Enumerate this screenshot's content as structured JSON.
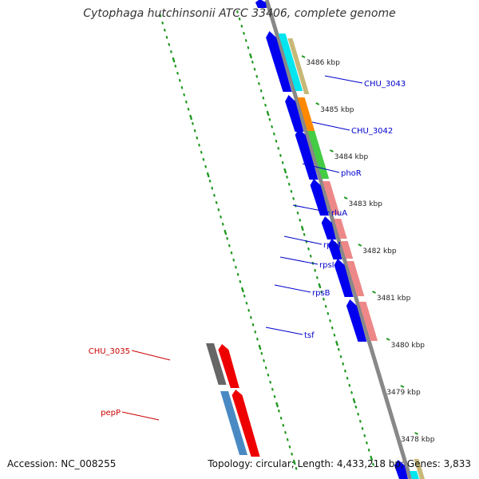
{
  "title": "Cytophaga hutchinsonii ATCC 33406, complete genome",
  "accession": "Accession: NC_008255",
  "topology": "Topology: circular; Length: 4,433,218 bp; Genes: 3,833",
  "colors": {
    "forward_cds": "#0000ee",
    "reverse_cds": "#ee0000",
    "backbone": "#888888",
    "gc_dots": "#229922",
    "label_blue": "#0000cc",
    "label_red": "#cc0000",
    "cog_pink": "#ee8888",
    "cog_green": "#44cc44",
    "cog_orange": "#ff8800",
    "cog_cyan": "#00e5ee",
    "cog_khaki": "#c8b878",
    "cog_grey": "#666666",
    "cog_steelblue": "#4a8ac4"
  },
  "ticks": [
    "3486 kbp",
    "3485 kbp",
    "3484 kbp",
    "3483 kbp",
    "3482 kbp",
    "3481 kbp",
    "3480 kbp",
    "3479 kbp",
    "3478 kbp"
  ],
  "genes": [
    {
      "label": "CHU_3043",
      "strand": "forward",
      "cog_color": "#00e5ee"
    },
    {
      "label": "CHU_3042",
      "strand": "forward",
      "cog_color": "#ff8800"
    },
    {
      "label": "phoR",
      "strand": "forward",
      "cog_color": "#44cc44"
    },
    {
      "label": "rluA",
      "strand": "forward",
      "cog_color": "#ee8888"
    },
    {
      "label": "rplM",
      "strand": "forward",
      "cog_color": "#ee8888"
    },
    {
      "label": "rpsI",
      "strand": "forward",
      "cog_color": "#ee8888"
    },
    {
      "label": "rpsB",
      "strand": "forward",
      "cog_color": "#ee8888"
    },
    {
      "label": "tsf",
      "strand": "forward",
      "cog_color": "#ee8888"
    },
    {
      "label": "CHU_3035",
      "strand": "reverse",
      "cog_color": "#666666"
    },
    {
      "label": "pepP",
      "strand": "reverse",
      "cog_color": "#4a8ac4"
    }
  ]
}
